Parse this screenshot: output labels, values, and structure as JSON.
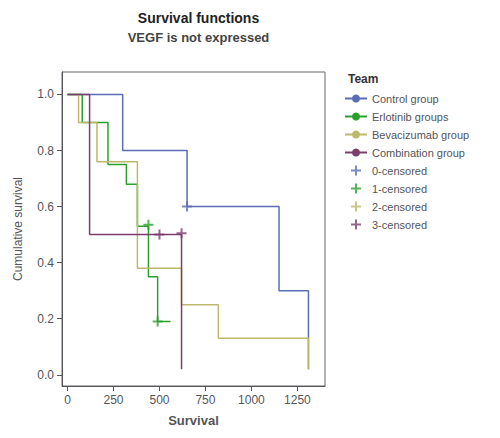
{
  "chart_data": {
    "type": "step",
    "title": "Survival functions",
    "subtitle": "VEGF is not expressed",
    "xlabel": "Survival",
    "ylabel": "Cumulative survival",
    "legend_title": "Team",
    "legend": "upper right",
    "grid": false,
    "xlim": [
      -30,
      1400
    ],
    "xticks": [
      0,
      250,
      500,
      750,
      1000,
      1250
    ],
    "ylim": [
      -0.04,
      1.08
    ],
    "yticks": [
      {
        "value": 0.0,
        "label": "0.0"
      },
      0.2,
      0.4,
      0.6,
      0.8,
      {
        "value": 1.0,
        "label": "1.0"
      }
    ],
    "series": [
      {
        "name": "Control group",
        "color": "#5b6db5",
        "x": [
          0,
          100,
          300,
          300,
          450,
          650,
          650,
          1150,
          1150,
          1310,
          1310
        ],
        "values": [
          1.0,
          1.0,
          1.0,
          0.8,
          0.8,
          0.8,
          0.6,
          0.6,
          0.3,
          0.3,
          0.02
        ]
      },
      {
        "name": "Erlotinib groups",
        "color": "#2ca02c",
        "x": [
          0,
          80,
          80,
          180,
          220,
          220,
          320,
          320,
          380,
          380,
          440,
          440,
          490,
          490,
          560
        ],
        "values": [
          1.0,
          1.0,
          0.9,
          0.9,
          0.9,
          0.75,
          0.75,
          0.68,
          0.68,
          0.53,
          0.53,
          0.35,
          0.35,
          0.19,
          0.19
        ]
      },
      {
        "name": "Bevacizumab group",
        "color": "#bcb96a",
        "x": [
          0,
          60,
          60,
          160,
          160,
          260,
          260,
          380,
          380,
          620,
          620,
          820,
          820,
          1310,
          1310
        ],
        "values": [
          1.0,
          1.0,
          0.9,
          0.9,
          0.76,
          0.76,
          0.76,
          0.76,
          0.38,
          0.38,
          0.25,
          0.25,
          0.13,
          0.13,
          0.02
        ]
      },
      {
        "name": "Combination group",
        "color": "#7b3f6e",
        "x": [
          0,
          120,
          120,
          500,
          620,
          620
        ],
        "values": [
          1.0,
          1.0,
          0.5,
          0.5,
          0.5,
          0.02
        ]
      },
      {
        "name": "0-censored",
        "type": "scatter",
        "marker": "plus",
        "color": "#5b6db5",
        "x": [
          650
        ],
        "values": [
          0.6
        ]
      },
      {
        "name": "1-censored",
        "type": "scatter",
        "marker": "plus",
        "color": "#2ca02c",
        "x": [
          440,
          490
        ],
        "values": [
          0.535,
          0.19
        ]
      },
      {
        "name": "2-censored",
        "type": "scatter",
        "marker": "plus",
        "color": "#bcb96a",
        "x": [],
        "values": []
      },
      {
        "name": "3-censored",
        "type": "scatter",
        "marker": "plus",
        "color": "#7b3f6e",
        "x": [
          500,
          620
        ],
        "values": [
          0.5,
          0.505
        ]
      }
    ]
  }
}
